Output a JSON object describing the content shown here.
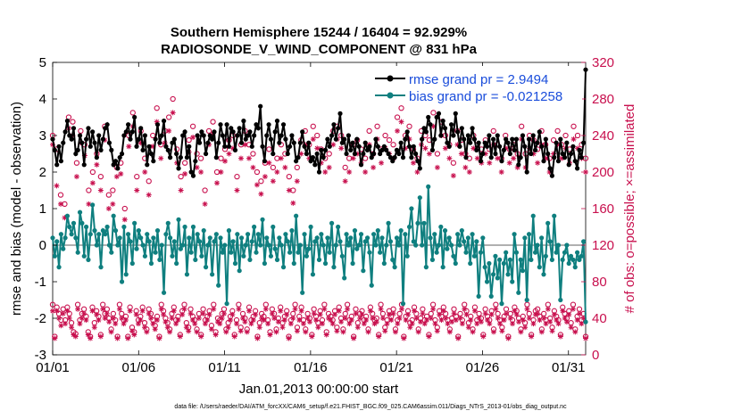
{
  "chart_data": {
    "type": "line",
    "title": "Southern Hemisphere 15244 / 16404 = 92.929%",
    "subtitle": "RADIOSONDE_V_WIND_COMPONENT @ 831 hPa",
    "xlabel": "Jan.01,2013 00:00:00 start",
    "ylabel": "rmse and bias (model - observation)",
    "ylabel_right": "# of obs: o=possible; ×=assimilated",
    "footnote": "data file: /Users/raeder/DAI/ATM_forcXX/CAM6_setup/f.e21.FHIST_BGC.f09_025.CAM6assim.011/Diags_NTrS_2013-01/obs_diag_output.nc",
    "ylim": [
      -3,
      5
    ],
    "ylim_right": [
      0,
      320
    ],
    "xlim": [
      1,
      32
    ],
    "x_ticks": [
      1,
      6,
      11,
      16,
      21,
      26,
      31
    ],
    "x_tick_labels": [
      "01/01",
      "01/06",
      "01/11",
      "01/16",
      "01/21",
      "01/26",
      "01/31"
    ],
    "y_ticks": [
      -3,
      -2,
      -1,
      0,
      1,
      2,
      3,
      4,
      5
    ],
    "y_tick_labels": [
      "-3",
      "-2",
      "-1",
      "0",
      "1",
      "2",
      "3",
      "4",
      "5"
    ],
    "y_ticks_right": [
      0,
      40,
      80,
      120,
      160,
      200,
      240,
      280,
      320
    ],
    "y_tick_labels_right": [
      "0",
      "40",
      "80",
      "120",
      "160",
      "200",
      "240",
      "280",
      "320"
    ],
    "grid": false,
    "legend_position": "top-right",
    "series": [
      {
        "name": "rmse grand pr = 2.9494",
        "color": "#000000",
        "axis": "left",
        "values": [
          2.9,
          2.6,
          2.2,
          2.7,
          2.3,
          2.8,
          3.1,
          3.4,
          3.0,
          2.9,
          3.2,
          2.5,
          2.6,
          3.0,
          2.8,
          2.2,
          2.9,
          3.2,
          2.7,
          3.1,
          2.8,
          2.4,
          3.0,
          2.6,
          2.9,
          3.2,
          3.3,
          2.8,
          2.6,
          2.2,
          2.3,
          2.1,
          2.4,
          2.5,
          3.0,
          3.1,
          3.3,
          2.9,
          3.1,
          3.5,
          2.7,
          2.9,
          3.2,
          2.6,
          3.0,
          2.2,
          2.7,
          2.5,
          2.3,
          2.9,
          3.3,
          2.8,
          3.0,
          3.4,
          2.7,
          2.6,
          2.4,
          2.8,
          2.9,
          2.5,
          2.1,
          2.4,
          3.0,
          3.1,
          2.4,
          2.7,
          2.0,
          1.9,
          2.3,
          3.0,
          2.8,
          3.1,
          3.0,
          2.5,
          2.8,
          3.0,
          2.9,
          3.1,
          2.4,
          2.8,
          3.3,
          3.0,
          2.7,
          3.3,
          2.7,
          3.2,
          3.1,
          2.6,
          3.0,
          3.2,
          2.8,
          3.4,
          2.9,
          3.0,
          3.1,
          2.7,
          3.0,
          3.3,
          3.2,
          3.8,
          2.7,
          2.3,
          3.0,
          3.3,
          2.9,
          2.5,
          3.1,
          3.4,
          2.8,
          3.0,
          3.3,
          2.9,
          2.5,
          2.7,
          3.0,
          2.8,
          2.3,
          2.4,
          2.8,
          3.1,
          2.7,
          2.5,
          2.8,
          2.3,
          2.4,
          2.2,
          2.5,
          2.0,
          2.6,
          2.4,
          2.6,
          2.9,
          2.7,
          3.0,
          3.3,
          2.9,
          3.2,
          3.6,
          2.8,
          2.9,
          2.5,
          3.0,
          2.6,
          2.8,
          2.5,
          2.9,
          2.7,
          2.2,
          2.5,
          2.8,
          2.6,
          2.7,
          2.4,
          2.5,
          2.9,
          2.7,
          2.5,
          2.6,
          2.7,
          2.6,
          2.5,
          2.4,
          2.3,
          2.4,
          2.6,
          2.5,
          2.8,
          2.4,
          2.9,
          3.1,
          2.7,
          2.4,
          2.7,
          2.5,
          2.3,
          2.1,
          2.9,
          3.2,
          3.1,
          3.5,
          3.3,
          2.6,
          2.9,
          3.5,
          3.6,
          3.0,
          3.4,
          3.2,
          2.8,
          2.7,
          3.3,
          3.0,
          3.6,
          3.1,
          2.7,
          3.2,
          2.9,
          2.4,
          3.0,
          2.8,
          3.2,
          2.9,
          2.6,
          2.8,
          2.3,
          2.5,
          2.8,
          2.7,
          3.0,
          2.4,
          2.9,
          2.5,
          3.0,
          2.7,
          2.3,
          2.6,
          2.9,
          2.8,
          2.5,
          2.9,
          2.6,
          2.9,
          2.2,
          2.4,
          3.0,
          2.7,
          2.0,
          2.9,
          2.5,
          3.0,
          2.6,
          2.8,
          3.1,
          2.7,
          2.3,
          2.9,
          2.5,
          2.1,
          1.9,
          2.4,
          2.8,
          2.3,
          2.9,
          2.5,
          2.4,
          2.8,
          2.2,
          2.5,
          2.7,
          2.3,
          2.1,
          2.6,
          2.4,
          2.8,
          4.8
        ]
      },
      {
        "name": "bias grand pr = -0.021258",
        "color": "#0f7f7f",
        "axis": "left",
        "values": [
          0.2,
          -0.3,
          0.1,
          -0.6,
          0.3,
          -0.1,
          0.2,
          0.8,
          0.5,
          0.3,
          0.6,
          0.2,
          -0.2,
          0.9,
          0.6,
          -0.3,
          0.5,
          -0.4,
          0.3,
          1.1,
          0.4,
          0.0,
          0.3,
          -0.6,
          0.4,
          0.3,
          0.5,
          0.0,
          -0.2,
          0.8,
          0.4,
          0.0,
          0.2,
          -1.0,
          0.5,
          -0.8,
          0.3,
          0.1,
          -0.5,
          0.6,
          -0.1,
          0.4,
          0.2,
          0.0,
          -0.3,
          0.3,
          0.1,
          -0.5,
          0.2,
          -0.2,
          0.4,
          -0.4,
          0.0,
          -1.3,
          0.3,
          0.6,
          0.2,
          -0.3,
          0.1,
          -0.5,
          0.7,
          -0.1,
          0.0,
          0.5,
          -0.8,
          0.2,
          -0.2,
          0.5,
          -0.4,
          0.3,
          0.1,
          -0.3,
          0.4,
          -0.6,
          0.0,
          0.2,
          -0.8,
          0.1,
          0.3,
          -1.1,
          0.2,
          -0.2,
          0.0,
          -1.6,
          0.4,
          -0.2,
          0.1,
          -0.5,
          0.3,
          -0.7,
          0.2,
          -0.3,
          0.0,
          0.3,
          -0.4,
          0.1,
          0.5,
          -0.2,
          0.3,
          0.0,
          0.7,
          -0.5,
          0.2,
          0.0,
          -0.3,
          0.5,
          -0.1,
          -0.4,
          0.2,
          0.0,
          -0.6,
          0.3,
          0.1,
          -0.2,
          0.4,
          -0.5,
          0.8,
          -0.2,
          0.0,
          -1.3,
          0.3,
          -0.3,
          -0.1,
          0.5,
          -0.8,
          0.1,
          0.2,
          -0.4,
          0.3,
          0.0,
          -0.5,
          0.2,
          -0.2,
          0.6,
          -0.6,
          0.0,
          0.5,
          0.1,
          -0.3,
          -0.9,
          0.3,
          0.0,
          0.2,
          -0.5,
          0.4,
          -0.1,
          0.0,
          0.3,
          -0.7,
          0.1,
          0.2,
          -0.2,
          -1.1,
          0.3,
          0.0,
          0.4,
          -0.2,
          0.2,
          -0.5,
          0.0,
          0.6,
          0.1,
          -0.4,
          -0.6,
          0.2,
          0.0,
          0.4,
          -1.6,
          0.3,
          -0.3,
          0.5,
          1.0,
          0.1,
          0.0,
          0.6,
          1.3,
          0.0,
          0.6,
          -0.6,
          1.6,
          0.2,
          -0.4,
          0.3,
          -0.2,
          0.0,
          0.5,
          -0.6,
          0.4,
          -0.1,
          0.2,
          0.0,
          -0.3,
          -0.5,
          0.3,
          0.0,
          0.4,
          0.1,
          -0.2,
          0.2,
          -0.5,
          0.3,
          -0.3,
          0.1,
          -1.4,
          -0.2,
          0.2,
          -0.6,
          -1.0,
          -0.5,
          -1.4,
          -0.8,
          -0.3,
          -0.9,
          -0.4,
          -1.6,
          -0.5,
          -0.2,
          -0.8,
          -0.4,
          -1.0,
          0.3,
          -0.2,
          -1.3,
          -0.4,
          -0.7,
          0.2,
          -1.5,
          0.3,
          -0.4,
          0.8,
          -0.2,
          0.0,
          -0.6,
          0.2,
          -0.8,
          -0.3,
          0.6,
          0.1,
          -0.4,
          0.8,
          -0.2,
          0.0,
          -1.5,
          -0.4,
          -0.2,
          0.0,
          -0.5,
          -0.3,
          -0.4,
          -0.6,
          -0.2,
          -0.4,
          -0.3,
          0.1,
          -2.1
        ]
      }
    ],
    "obs_possible": {
      "marker": "circle",
      "axis": "right",
      "values": [
        55,
        20,
        52,
        45,
        38,
        50,
        38,
        52,
        45,
        35,
        25,
        23,
        55,
        38,
        45,
        50,
        42,
        25,
        20,
        52,
        35,
        48,
        42,
        22,
        55,
        45,
        50,
        40,
        28,
        45,
        38,
        20,
        55,
        45,
        38,
        42,
        20,
        52,
        30,
        25,
        48,
        38,
        42,
        52,
        35,
        28,
        50,
        45,
        38,
        32,
        42,
        20,
        55,
        48,
        40,
        35,
        28,
        45,
        52,
        38,
        42,
        22,
        48,
        55,
        35,
        30,
        50,
        42,
        38,
        28,
        45,
        22,
        50,
        38,
        42,
        48,
        32,
        55,
        25,
        40,
        38,
        45,
        50,
        28,
        35,
        42,
        48,
        22,
        38,
        55,
        30,
        45,
        40,
        28,
        52,
        38,
        42,
        48,
        20,
        35,
        45,
        42,
        55,
        38,
        25,
        50,
        45,
        28,
        40,
        52,
        35,
        42,
        48,
        20,
        38,
        45,
        55,
        30,
        42,
        52,
        38,
        28,
        45,
        40,
        22,
        50,
        42,
        35,
        48,
        38,
        55,
        25,
        45,
        42,
        38,
        48,
        30,
        52,
        40,
        28,
        45,
        55,
        38,
        42,
        20,
        50,
        35,
        45,
        48,
        38,
        42,
        28,
        52,
        45,
        38,
        40,
        22,
        55,
        45,
        30,
        38,
        48,
        42,
        50,
        28,
        38,
        45,
        55,
        20,
        42,
        48,
        35,
        38,
        52,
        45,
        28,
        40,
        50,
        38,
        42,
        22,
        45,
        55,
        38,
        30,
        48,
        42,
        52,
        45,
        38,
        28,
        40,
        50,
        42,
        20,
        45,
        38,
        55,
        48,
        35,
        42,
        28,
        52,
        38,
        45,
        40,
        22,
        50,
        42,
        38,
        48,
        28,
        55,
        45,
        38,
        30,
        42,
        50,
        20,
        45,
        38,
        52,
        48,
        40,
        28,
        42,
        35,
        55,
        45,
        22,
        38,
        48,
        50,
        42,
        28,
        45,
        38,
        55,
        40,
        30,
        48,
        42,
        38,
        22,
        52,
        45,
        40,
        48,
        35,
        55,
        28,
        42,
        50,
        38,
        45,
        20
      ]
    },
    "obs_assimilated": {
      "marker": "asterisk",
      "axis": "right",
      "values": [
        48,
        18,
        48,
        40,
        32,
        45,
        34,
        48,
        40,
        30,
        22,
        20,
        50,
        34,
        40,
        45,
        38,
        22,
        18,
        48,
        30,
        44,
        38,
        20,
        50,
        40,
        45,
        36,
        25,
        40,
        34,
        18,
        50,
        40,
        34,
        38,
        18,
        48,
        26,
        22,
        44,
        34,
        38,
        48,
        30,
        25,
        45,
        40,
        34,
        28,
        38,
        18,
        50,
        44,
        36,
        30,
        25,
        40,
        48,
        34,
        38,
        20,
        44,
        50,
        30,
        26,
        45,
        38,
        34,
        25,
        40,
        20,
        45,
        34,
        38,
        44,
        28,
        50,
        22,
        36,
        34,
        40,
        45,
        25,
        30,
        38,
        44,
        20,
        34,
        50,
        26,
        40,
        36,
        25,
        48,
        34,
        38,
        44,
        18,
        30,
        40,
        38,
        50,
        34,
        22,
        45,
        40,
        25,
        36,
        48,
        30,
        38,
        44,
        18,
        34,
        40,
        50,
        26,
        38,
        48,
        34,
        25,
        40,
        36,
        20,
        45,
        38,
        30,
        44,
        34,
        50,
        22,
        40,
        38,
        34,
        44,
        26,
        48,
        36,
        25,
        40,
        50,
        34,
        38,
        18,
        45,
        30,
        40,
        44,
        34,
        38,
        25,
        48,
        40,
        34,
        36,
        20,
        50,
        40,
        26,
        34,
        44,
        38,
        45,
        25,
        34,
        40,
        50,
        18,
        38,
        44,
        30,
        34,
        48,
        40,
        25,
        36,
        45,
        34,
        38,
        20,
        40,
        50,
        34,
        26,
        44,
        38,
        48,
        40,
        34,
        25,
        36,
        45,
        38,
        18,
        40,
        34,
        50,
        44,
        30,
        38,
        25,
        48,
        34,
        40,
        36,
        20,
        45,
        38,
        34,
        44,
        25,
        50,
        40,
        34,
        26,
        38,
        45,
        18,
        40,
        34,
        48,
        44,
        36,
        25,
        38,
        30,
        50,
        40,
        20,
        34,
        44,
        45,
        38,
        25,
        40,
        34,
        50,
        36,
        26,
        44,
        38,
        34,
        20,
        48,
        40,
        36,
        44,
        30,
        50,
        25,
        38,
        45,
        34,
        40,
        18
      ]
    },
    "obs_possible_upper": {
      "marker": "circle",
      "axis": "right",
      "values": [
        240,
        225,
        175,
        165,
        260,
        255,
        210,
        245,
        230,
        180,
        200,
        220,
        195,
        250,
        175,
        180,
        205,
        210,
        160,
        240,
        265,
        195,
        245,
        215,
        190,
        240,
        270,
        230,
        245,
        260,
        280,
        225,
        195,
        210,
        235,
        250,
        220,
        215,
        180,
        245,
        255,
        200,
        215,
        225,
        235,
        240,
        195,
        230,
        245,
        230,
        220,
        200,
        190,
        210,
        225,
        205,
        215,
        230,
        220,
        195,
        180,
        205,
        235,
        245,
        230,
        250,
        240,
        225,
        215,
        220,
        245,
        250,
        240,
        205,
        215,
        230,
        235,
        225,
        215,
        245,
        220,
        250,
        225,
        240,
        235,
        230,
        260,
        270,
        240,
        250,
        225,
        215,
        245,
        240,
        235,
        265,
        220,
        255,
        240,
        230,
        210,
        245,
        235,
        220,
        215,
        240,
        230,
        225,
        235,
        225,
        245,
        230,
        215,
        240,
        225,
        230,
        220,
        250,
        220,
        240,
        235,
        225,
        245,
        230,
        215,
        235,
        245,
        230,
        240,
        225,
        250,
        240,
        230,
        215
      ]
    },
    "obs_assimilated_upper": {
      "marker": "asterisk",
      "axis": "right",
      "values": [
        230,
        185,
        165,
        150,
        248,
        240,
        195,
        232,
        218,
        165,
        188,
        208,
        180,
        235,
        160,
        165,
        195,
        198,
        148,
        228,
        250,
        180,
        232,
        200,
        175,
        228,
        255,
        215,
        232,
        245,
        265,
        210,
        180,
        198,
        222,
        238,
        205,
        200,
        165,
        230,
        242,
        188,
        200,
        212,
        220,
        226,
        180,
        215,
        230,
        215,
        205,
        186,
        176,
        195,
        210,
        190,
        200,
        215,
        205,
        180,
        166,
        190,
        220,
        230,
        215,
        236,
        226,
        210,
        200,
        205,
        230,
        236,
        226,
        190,
        200,
        215,
        220,
        210,
        200,
        230,
        205,
        236,
        210,
        226,
        220,
        215,
        245,
        255,
        226,
        236,
        210,
        200,
        230,
        226,
        220,
        250,
        205,
        240,
        226,
        215,
        196,
        230,
        220,
        205,
        200,
        226,
        215,
        210,
        220,
        210,
        230,
        215,
        200,
        226,
        210,
        215,
        205,
        236,
        205,
        226,
        220,
        210,
        230,
        215,
        200,
        220,
        230,
        215,
        226,
        210,
        236,
        226,
        215,
        200
      ]
    }
  }
}
